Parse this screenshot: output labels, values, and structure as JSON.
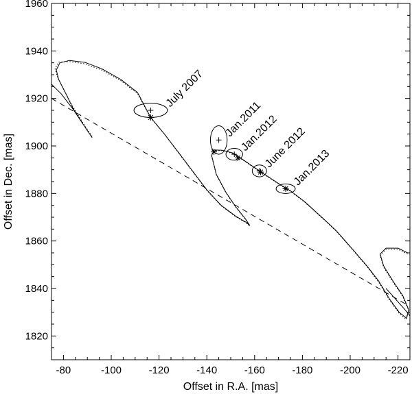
{
  "chart_data": {
    "type": "line",
    "title": "",
    "xlabel": "Offset in R.A. [mas]",
    "ylabel": "Offset in Dec. [mas]",
    "xlim": [
      -75,
      -225
    ],
    "ylim": [
      1810,
      1960
    ],
    "x_ticks": [
      -80,
      -100,
      -120,
      -140,
      -160,
      -180,
      -200,
      -220
    ],
    "y_ticks": [
      1820,
      1840,
      1860,
      1880,
      1900,
      1920,
      1940,
      1960
    ],
    "grid": false,
    "legend": "none",
    "line_color": "#000000",
    "series": [
      {
        "style": "solid",
        "points": [
          [
            -92,
            1903.5
          ],
          [
            -88,
            1909.5
          ],
          [
            -84,
            1915.8
          ],
          [
            -81,
            1922
          ],
          [
            -78,
            1928
          ],
          [
            -77,
            1932
          ],
          [
            -78.5,
            1935
          ],
          [
            -82.5,
            1936
          ],
          [
            -89,
            1935.2
          ],
          [
            -96,
            1932.5
          ],
          [
            -104,
            1928
          ],
          [
            -111,
            1922.5
          ],
          [
            -116.5,
            1912
          ],
          [
            -122,
            1905.3
          ],
          [
            -128,
            1897.5
          ],
          [
            -134,
            1889.5
          ],
          [
            -140,
            1881.5
          ],
          [
            -146,
            1875
          ],
          [
            -152,
            1870.5
          ],
          [
            -156.5,
            1867.8
          ],
          [
            -158,
            1866.5
          ],
          [
            -156,
            1869.5
          ],
          [
            -152,
            1874.5
          ],
          [
            -148,
            1880.5
          ],
          [
            -144,
            1888
          ],
          [
            -142,
            1896
          ],
          [
            -143,
            1898.3
          ],
          [
            -146.5,
            1898.2
          ],
          [
            -151,
            1897
          ],
          [
            -154,
            1895
          ],
          [
            -162,
            1889.5
          ],
          [
            -170,
            1884.2
          ],
          [
            -175,
            1881.1
          ],
          [
            -181,
            1876.5
          ],
          [
            -187,
            1871
          ],
          [
            -194,
            1864.5
          ],
          [
            -201,
            1856.5
          ],
          [
            -207,
            1849.5
          ],
          [
            -212,
            1843
          ],
          [
            -216.5,
            1835.5
          ],
          [
            -220.5,
            1830
          ],
          [
            -223.5,
            1827.5
          ],
          [
            -224.5,
            1831
          ],
          [
            -222,
            1837
          ],
          [
            -218,
            1843
          ],
          [
            -214,
            1849.5
          ],
          [
            -212.5,
            1854.5
          ],
          [
            -215,
            1857
          ],
          [
            -220,
            1857
          ],
          [
            -224,
            1855
          ]
        ]
      },
      {
        "style": "dotted",
        "points": [
          [
            -92,
            1904
          ],
          [
            -88,
            1910
          ],
          [
            -84,
            1916.4
          ],
          [
            -80.5,
            1923
          ],
          [
            -77.5,
            1929
          ],
          [
            -76.5,
            1932.5
          ],
          [
            -78,
            1935.3
          ],
          [
            -82.5,
            1935.5
          ],
          [
            -89,
            1934.6
          ],
          [
            -96,
            1932
          ],
          [
            -104,
            1927.5
          ],
          [
            -111,
            1922
          ],
          [
            -116.5,
            1911.8
          ],
          [
            -122,
            1905.3
          ],
          [
            -128,
            1897.3
          ],
          [
            -134,
            1889.3
          ],
          [
            -140,
            1881.3
          ],
          [
            -146,
            1874.8
          ],
          [
            -152,
            1870.3
          ],
          [
            -156.5,
            1867.5
          ],
          [
            -158,
            1866.3
          ],
          [
            -156,
            1869.3
          ],
          [
            -152,
            1874.3
          ],
          [
            -148,
            1880.3
          ],
          [
            -144,
            1887.8
          ],
          [
            -142,
            1895.8
          ],
          [
            -143,
            1898
          ],
          [
            -146.5,
            1898
          ],
          [
            -151,
            1896.8
          ],
          [
            -154,
            1894.8
          ],
          [
            -162,
            1889.3
          ],
          [
            -170,
            1884
          ],
          [
            -175,
            1880.9
          ],
          [
            -181,
            1876.3
          ],
          [
            -187,
            1870.8
          ],
          [
            -194,
            1864.3
          ],
          [
            -201,
            1856.3
          ],
          [
            -207,
            1849.3
          ],
          [
            -212,
            1842.5
          ],
          [
            -216.5,
            1835
          ],
          [
            -220.5,
            1829.5
          ],
          [
            -223.5,
            1827
          ],
          [
            -224.5,
            1830.5
          ],
          [
            -222,
            1836.5
          ],
          [
            -218,
            1842.5
          ],
          [
            -214,
            1849
          ],
          [
            -212.5,
            1854
          ],
          [
            -215,
            1856.5
          ],
          [
            -220,
            1856.5
          ],
          [
            -224,
            1854.5
          ]
        ]
      },
      {
        "style": "dashed",
        "points": [
          [
            -75,
            1920
          ],
          [
            -224,
            1833
          ]
        ]
      },
      {
        "style": "solid",
        "points": [
          [
            -75,
            1926
          ],
          [
            -79,
            1922
          ],
          [
            -84,
            1915.5
          ],
          [
            -88,
            1909.5
          ]
        ]
      },
      {
        "style": "solid",
        "points": [
          [
            -215,
            1840
          ],
          [
            -219,
            1835.5
          ],
          [
            -223,
            1831
          ],
          [
            -225,
            1828.5
          ]
        ]
      }
    ],
    "epochs": [
      {
        "label": "July 2007",
        "observed": [
          -116.5,
          1915
        ],
        "model": [
          -116.5,
          1912
        ],
        "error": [
          7,
          3
        ]
      },
      {
        "label": "Jan.2011",
        "observed": [
          -145,
          1902.5
        ],
        "model": [
          -143,
          1897.5
        ],
        "error": [
          3.5,
          6
        ]
      },
      {
        "label": "Jan.2012",
        "observed": [
          -151.5,
          1896.5
        ],
        "model": [
          -153,
          1895
        ],
        "error": [
          3.5,
          2.5
        ]
      },
      {
        "label": "June 2012",
        "observed": [
          -162,
          1889.5
        ],
        "model": [
          -162.5,
          1889
        ],
        "error": [
          3,
          2.5
        ]
      },
      {
        "label": "Jan.2013",
        "observed": [
          -173,
          1882
        ],
        "model": [
          -173,
          1882
        ],
        "error": [
          4,
          2
        ]
      }
    ]
  }
}
